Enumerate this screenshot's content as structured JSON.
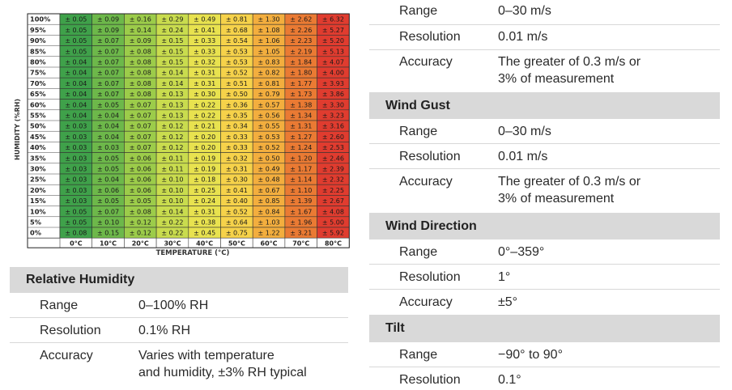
{
  "chart_data": {
    "type": "heatmap",
    "ylabel": "HUMIDITY (%RH)",
    "xlabel": "TEMPERATURE (°C)",
    "x_categories": [
      "0°C",
      "10°C",
      "20°C",
      "30°C",
      "40°C",
      "50°C",
      "60°C",
      "70°C",
      "80°C"
    ],
    "y_categories": [
      "100%",
      "95%",
      "90%",
      "85%",
      "80%",
      "75%",
      "70%",
      "65%",
      "60%",
      "55%",
      "50%",
      "45%",
      "40%",
      "35%",
      "30%",
      "25%",
      "20%",
      "15%",
      "10%",
      "5%",
      "0%"
    ],
    "colors": [
      "#3fa14a",
      "#6db84a",
      "#9ccc4a",
      "#c9dc4e",
      "#e8e24f",
      "#f6d24a",
      "#f3ae3e",
      "#ea7a33",
      "#e03c2f"
    ],
    "values": [
      [
        "± 0.05",
        "± 0.09",
        "± 0.16",
        "± 0.29",
        "± 0.49",
        "± 0.81",
        "± 1.30",
        "± 2.62",
        "± 6.32"
      ],
      [
        "± 0.05",
        "± 0.09",
        "± 0.14",
        "± 0.24",
        "± 0.41",
        "± 0.68",
        "± 1.08",
        "± 2.26",
        "± 5.27"
      ],
      [
        "± 0.05",
        "± 0.07",
        "± 0.09",
        "± 0.15",
        "± 0.33",
        "± 0.54",
        "± 1.06",
        "± 2.23",
        "± 5.20"
      ],
      [
        "± 0.05",
        "± 0.07",
        "± 0.08",
        "± 0.15",
        "± 0.33",
        "± 0.53",
        "± 1.05",
        "± 2.19",
        "± 5.13"
      ],
      [
        "± 0.04",
        "± 0.07",
        "± 0.08",
        "± 0.15",
        "± 0.32",
        "± 0.53",
        "± 0.83",
        "± 1.84",
        "± 4.07"
      ],
      [
        "± 0.04",
        "± 0.07",
        "± 0.08",
        "± 0.14",
        "± 0.31",
        "± 0.52",
        "± 0.82",
        "± 1.80",
        "± 4.00"
      ],
      [
        "± 0.04",
        "± 0.07",
        "± 0.08",
        "± 0.14",
        "± 0.31",
        "± 0.51",
        "± 0.81",
        "± 1.77",
        "± 3.93"
      ],
      [
        "± 0.04",
        "± 0.07",
        "± 0.08",
        "± 0.13",
        "± 0.30",
        "± 0.50",
        "± 0.79",
        "± 1.73",
        "± 3.86"
      ],
      [
        "± 0.04",
        "± 0.05",
        "± 0.07",
        "± 0.13",
        "± 0.22",
        "± 0.36",
        "± 0.57",
        "± 1.38",
        "± 3.30"
      ],
      [
        "± 0.04",
        "± 0.04",
        "± 0.07",
        "± 0.13",
        "± 0.22",
        "± 0.35",
        "± 0.56",
        "± 1.34",
        "± 3.23"
      ],
      [
        "± 0.03",
        "± 0.04",
        "± 0.07",
        "± 0.12",
        "± 0.21",
        "± 0.34",
        "± 0.55",
        "± 1.31",
        "± 3.16"
      ],
      [
        "± 0.03",
        "± 0.04",
        "± 0.07",
        "± 0.12",
        "± 0.20",
        "± 0.33",
        "± 0.53",
        "± 1.27",
        "± 2.60"
      ],
      [
        "± 0.03",
        "± 0.03",
        "± 0.07",
        "± 0.12",
        "± 0.20",
        "± 0.33",
        "± 0.52",
        "± 1.24",
        "± 2.53"
      ],
      [
        "± 0.03",
        "± 0.05",
        "± 0.06",
        "± 0.11",
        "± 0.19",
        "± 0.32",
        "± 0.50",
        "± 1.20",
        "± 2.46"
      ],
      [
        "± 0.03",
        "± 0.05",
        "± 0.06",
        "± 0.11",
        "± 0.19",
        "± 0.31",
        "± 0.49",
        "± 1.17",
        "± 2.39"
      ],
      [
        "± 0.03",
        "± 0.04",
        "± 0.06",
        "± 0.10",
        "± 0.18",
        "± 0.30",
        "± 0.48",
        "± 1.14",
        "± 2.32"
      ],
      [
        "± 0.03",
        "± 0.06",
        "± 0.06",
        "± 0.10",
        "± 0.25",
        "± 0.41",
        "± 0.67",
        "± 1.10",
        "± 2.25"
      ],
      [
        "± 0.03",
        "± 0.05",
        "± 0.05",
        "± 0.10",
        "± 0.24",
        "± 0.40",
        "± 0.85",
        "± 1.39",
        "± 2.67"
      ],
      [
        "± 0.05",
        "± 0.07",
        "± 0.08",
        "± 0.14",
        "± 0.31",
        "± 0.52",
        "± 0.84",
        "± 1.67",
        "± 4.08"
      ],
      [
        "± 0.05",
        "± 0.10",
        "± 0.12",
        "± 0.22",
        "± 0.38",
        "± 0.64",
        "± 1.03",
        "± 1.96",
        "± 5.00"
      ],
      [
        "± 0.08",
        "± 0.15",
        "± 0.12",
        "± 0.22",
        "± 0.45",
        "± 0.75",
        "± 1.22",
        "± 3.21",
        "± 5.92"
      ]
    ]
  },
  "relative_humidity": {
    "title": "Relative Humidity",
    "rows": [
      {
        "label": "Range",
        "value": "0–100% RH"
      },
      {
        "label": "Resolution",
        "value": "0.1% RH"
      },
      {
        "label": "Accuracy",
        "value": "Varies with temperature",
        "value2": "and humidity, ±3% RH typical"
      }
    ]
  },
  "wind_speed": {
    "rows": [
      {
        "label": "Range",
        "value": "0–30 m/s"
      },
      {
        "label": "Resolution",
        "value": "0.01 m/s"
      },
      {
        "label": "Accuracy",
        "value": "The greater of 0.3 m/s or",
        "value2": "3% of measurement"
      }
    ]
  },
  "wind_gust": {
    "title": "Wind Gust",
    "rows": [
      {
        "label": "Range",
        "value": "0–30 m/s"
      },
      {
        "label": "Resolution",
        "value": "0.01 m/s"
      },
      {
        "label": "Accuracy",
        "value": "The greater of 0.3 m/s or",
        "value2": "3% of measurement"
      }
    ]
  },
  "wind_direction": {
    "title": "Wind Direction",
    "rows": [
      {
        "label": "Range",
        "value": "0°–359°"
      },
      {
        "label": "Resolution",
        "value": "1°"
      },
      {
        "label": "Accuracy",
        "value": "±5°"
      }
    ]
  },
  "tilt": {
    "title": "Tilt",
    "rows": [
      {
        "label": "Range",
        "value": "−90° to 90°"
      },
      {
        "label": "Resolution",
        "value": "0.1°"
      }
    ]
  }
}
